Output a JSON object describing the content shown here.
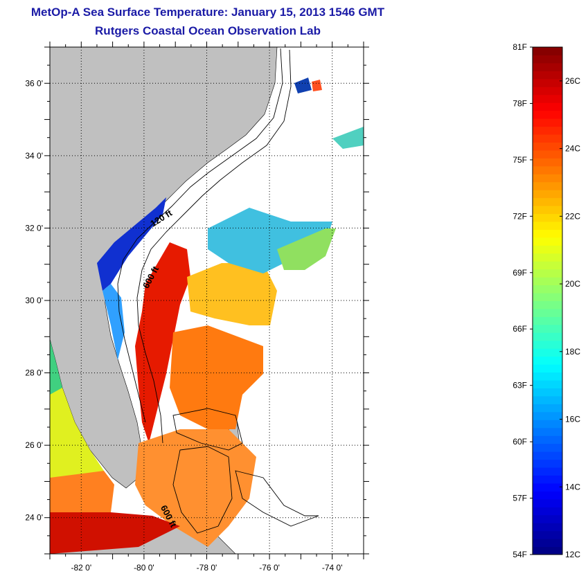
{
  "title": "MetOp-A Sea Surface Temperature:  January 15, 2013 1546 GMT",
  "subtitle": "Rutgers Coastal Ocean Observation Lab",
  "map": {
    "lon_range": [
      -83,
      -73
    ],
    "lat_range": [
      23,
      37
    ],
    "lon_ticks": [
      {
        "value": -82,
        "label": "-82 0'"
      },
      {
        "value": -80,
        "label": "-80 0'"
      },
      {
        "value": -78,
        "label": "-78 0'"
      },
      {
        "value": -76,
        "label": "-76 0'"
      },
      {
        "value": -74,
        "label": "-74 0'"
      }
    ],
    "lat_ticks": [
      {
        "value": 36,
        "label": "36 0'"
      },
      {
        "value": 34,
        "label": "34 0'"
      },
      {
        "value": 32,
        "label": "32 0'"
      },
      {
        "value": 30,
        "label": "30 0'"
      },
      {
        "value": 28,
        "label": "28 0'"
      },
      {
        "value": 26,
        "label": "26 0'"
      },
      {
        "value": 24,
        "label": "24 0'"
      }
    ],
    "grid": true,
    "land_color": "#c0c0c0",
    "contour_labels": [
      {
        "text": "120 ft",
        "lon": -79.4,
        "lat": 32.2,
        "rotate": -32
      },
      {
        "text": "600 ft",
        "lon": -79.7,
        "lat": 30.6,
        "rotate": -62
      },
      {
        "text": "600 ft",
        "lon": -79.3,
        "lat": 24.0,
        "rotate": 62
      }
    ]
  },
  "colorbar": {
    "min_f": 54,
    "max_f": 81,
    "min_c": 12,
    "max_c": 27,
    "f_labels": [
      "81F",
      "78F",
      "75F",
      "72F",
      "69F",
      "66F",
      "63F",
      "60F",
      "57F",
      "54F"
    ],
    "c_labels": [
      "26C",
      "24C",
      "22C",
      "20C",
      "18C",
      "16C",
      "14C",
      "12C"
    ],
    "colors": [
      "#00007f",
      "#0000ff",
      "#007fff",
      "#00ffff",
      "#7fff7f",
      "#ffff00",
      "#ff7f00",
      "#ff0000",
      "#7f0000"
    ]
  }
}
